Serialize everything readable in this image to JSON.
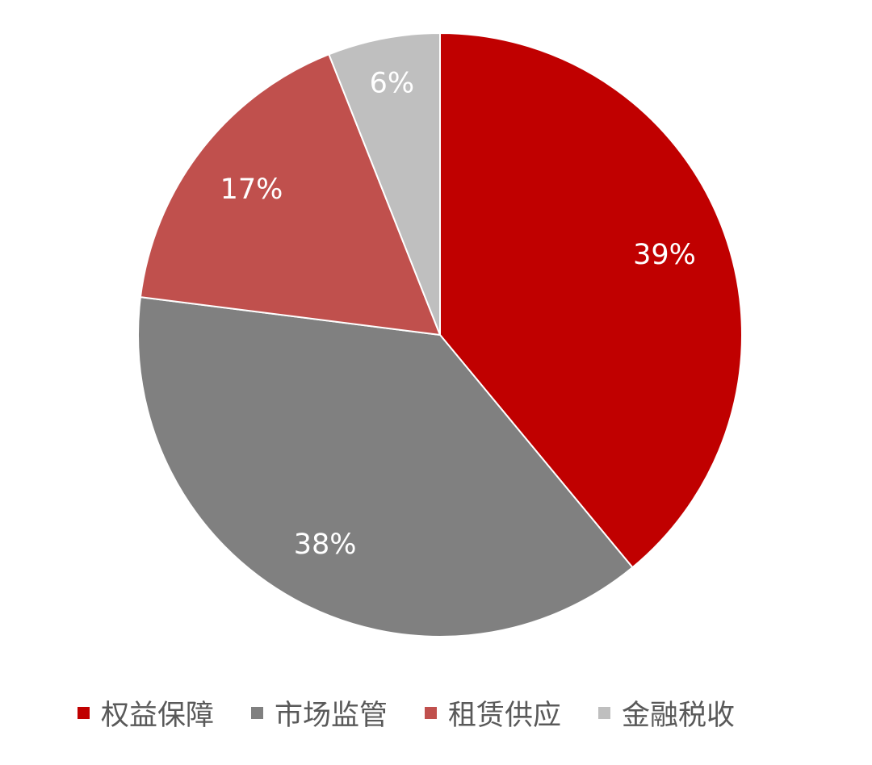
{
  "chart_data": {
    "type": "pie",
    "title": "",
    "start_angle": "12 o'clock, clockwise",
    "categories": [
      "权益保障",
      "市场监管",
      "租赁供应",
      "金融税收"
    ],
    "values": [
      39,
      38,
      17,
      6
    ],
    "labels": [
      "39%",
      "38%",
      "17%",
      "6%"
    ],
    "colors": [
      "#C00000",
      "#808080",
      "#C0504D",
      "#BFBFBF"
    ],
    "legend_position": "bottom"
  }
}
